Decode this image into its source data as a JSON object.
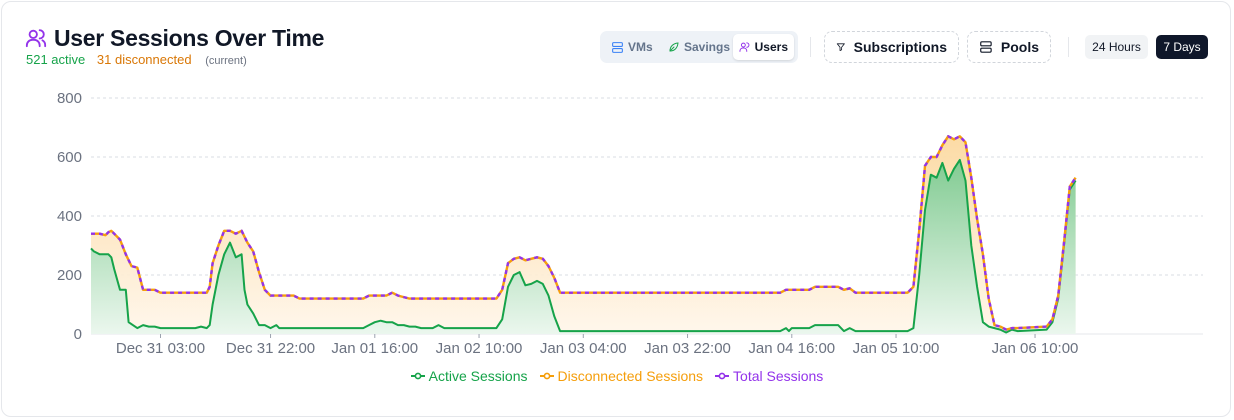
{
  "header": {
    "title": "User Sessions Over Time",
    "active_text": "521 active",
    "disconnected_text": "31 disconnected",
    "current_text": "(current)"
  },
  "toolbar": {
    "segments": [
      {
        "label": "VMs",
        "icon": "server-icon",
        "selected": false
      },
      {
        "label": "Savings",
        "icon": "leaf-icon",
        "selected": false
      },
      {
        "label": "Users",
        "icon": "users-icon",
        "selected": true
      }
    ],
    "subscriptions_label": "Subscriptions",
    "pools_label": "Pools",
    "ranges": [
      {
        "label": "24 Hours",
        "selected": false
      },
      {
        "label": "7 Days",
        "selected": true
      }
    ]
  },
  "colors": {
    "active": "#16a34a",
    "disconnected": "#f59e0b",
    "total": "#9333ea",
    "title_icon": "#9333ea"
  },
  "chart_data": {
    "type": "area",
    "ylim": [
      0,
      800
    ],
    "yticks": [
      0,
      200,
      400,
      600,
      800
    ],
    "xlim_hours": [
      0,
      192
    ],
    "x_tick_labels": [
      "Dec 31 03:00",
      "Dec 31 22:00",
      "Jan 01 16:00",
      "Jan 02 10:00",
      "Jan 03 04:00",
      "Jan 03 22:00",
      "Jan 04 16:00",
      "Jan 05 10:00",
      "Jan 06 10:00"
    ],
    "x_tick_hours": [
      12,
      31,
      49,
      67,
      85,
      103,
      121,
      139,
      163
    ],
    "grid": true,
    "legend_position": "bottom-center",
    "series": [
      {
        "name": "Active Sessions",
        "key": "active",
        "values": [
          [
            0,
            290
          ],
          [
            0.5,
            280
          ],
          [
            1.5,
            270
          ],
          [
            3,
            270
          ],
          [
            3.5,
            260
          ],
          [
            4,
            220
          ],
          [
            5,
            150
          ],
          [
            6,
            150
          ],
          [
            6.5,
            40
          ],
          [
            8,
            20
          ],
          [
            9,
            30
          ],
          [
            10,
            25
          ],
          [
            11,
            25
          ],
          [
            12,
            20
          ],
          [
            15,
            20
          ],
          [
            18,
            20
          ],
          [
            19,
            25
          ],
          [
            20,
            20
          ],
          [
            20.5,
            30
          ],
          [
            21,
            100
          ],
          [
            22,
            200
          ],
          [
            23,
            270
          ],
          [
            24,
            310
          ],
          [
            25,
            260
          ],
          [
            26,
            270
          ],
          [
            26.5,
            150
          ],
          [
            27,
            100
          ],
          [
            28,
            70
          ],
          [
            29,
            30
          ],
          [
            30,
            30
          ],
          [
            31,
            20
          ],
          [
            32,
            30
          ],
          [
            32.5,
            20
          ],
          [
            40,
            20
          ],
          [
            47,
            20
          ],
          [
            48,
            30
          ],
          [
            49,
            40
          ],
          [
            50,
            45
          ],
          [
            51,
            40
          ],
          [
            52,
            40
          ],
          [
            53,
            30
          ],
          [
            54,
            30
          ],
          [
            55,
            25
          ],
          [
            56,
            25
          ],
          [
            57,
            20
          ],
          [
            58,
            20
          ],
          [
            59,
            20
          ],
          [
            60,
            30
          ],
          [
            61,
            20
          ],
          [
            70,
            20
          ],
          [
            71,
            50
          ],
          [
            72,
            160
          ],
          [
            73,
            200
          ],
          [
            74,
            210
          ],
          [
            75,
            165
          ],
          [
            76,
            170
          ],
          [
            77,
            180
          ],
          [
            78,
            170
          ],
          [
            79,
            130
          ],
          [
            80,
            60
          ],
          [
            81,
            10
          ],
          [
            85,
            10
          ],
          [
            95,
            10
          ],
          [
            110,
            10
          ],
          [
            119,
            10
          ],
          [
            120,
            20
          ],
          [
            120.5,
            10
          ],
          [
            121,
            20
          ],
          [
            122,
            20
          ],
          [
            124,
            20
          ],
          [
            125,
            30
          ],
          [
            129,
            30
          ],
          [
            130,
            10
          ],
          [
            131,
            20
          ],
          [
            132,
            10
          ],
          [
            141,
            10
          ],
          [
            142,
            20
          ],
          [
            143,
            200
          ],
          [
            144,
            420
          ],
          [
            145,
            540
          ],
          [
            146,
            530
          ],
          [
            147,
            580
          ],
          [
            148,
            520
          ],
          [
            149,
            560
          ],
          [
            150,
            590
          ],
          [
            151,
            520
          ],
          [
            152,
            300
          ],
          [
            153,
            160
          ],
          [
            154,
            40
          ],
          [
            155,
            25
          ],
          [
            156,
            20
          ],
          [
            157,
            15
          ],
          [
            158,
            5
          ],
          [
            159,
            15
          ],
          [
            160,
            10
          ],
          [
            165,
            15
          ],
          [
            166,
            40
          ],
          [
            167,
            120
          ],
          [
            168,
            300
          ],
          [
            169,
            490
          ],
          [
            170,
            520
          ]
        ]
      },
      {
        "name": "Disconnected Sessions",
        "key": "disconnected",
        "values": [
          [
            0,
            50
          ],
          [
            3,
            80
          ],
          [
            6,
            80
          ],
          [
            10,
            120
          ],
          [
            15,
            120
          ],
          [
            20,
            110
          ],
          [
            24,
            40
          ],
          [
            28,
            100
          ],
          [
            32,
            100
          ],
          [
            40,
            100
          ],
          [
            49,
            95
          ],
          [
            55,
            95
          ],
          [
            60,
            100
          ],
          [
            70,
            100
          ],
          [
            73,
            55
          ],
          [
            78,
            85
          ],
          [
            82,
            130
          ],
          [
            95,
            130
          ],
          [
            110,
            130
          ],
          [
            119,
            130
          ],
          [
            121,
            125
          ],
          [
            130,
            125
          ],
          [
            135,
            125
          ],
          [
            141,
            130
          ],
          [
            144,
            150
          ],
          [
            148,
            100
          ],
          [
            150,
            70
          ],
          [
            153,
            230
          ],
          [
            155,
            100
          ],
          [
            157,
            10
          ],
          [
            160,
            5
          ],
          [
            165,
            0
          ],
          [
            170,
            10
          ]
        ]
      },
      {
        "name": "Total Sessions",
        "key": "total",
        "values": [
          [
            0,
            340
          ],
          [
            0.5,
            340
          ],
          [
            1.5,
            340
          ],
          [
            2.5,
            335
          ],
          [
            3,
            345
          ],
          [
            3.5,
            350
          ],
          [
            4,
            340
          ],
          [
            5,
            320
          ],
          [
            6,
            270
          ],
          [
            7,
            230
          ],
          [
            8,
            225
          ],
          [
            9,
            150
          ],
          [
            10,
            150
          ],
          [
            11,
            150
          ],
          [
            12,
            140
          ],
          [
            15,
            140
          ],
          [
            18,
            140
          ],
          [
            19,
            140
          ],
          [
            20,
            140
          ],
          [
            20.5,
            160
          ],
          [
            21,
            240
          ],
          [
            22,
            300
          ],
          [
            23,
            350
          ],
          [
            24,
            350
          ],
          [
            25,
            340
          ],
          [
            26,
            350
          ],
          [
            27,
            310
          ],
          [
            28,
            280
          ],
          [
            29,
            210
          ],
          [
            30,
            150
          ],
          [
            31,
            130
          ],
          [
            32,
            130
          ],
          [
            35,
            130
          ],
          [
            36,
            120
          ],
          [
            40,
            120
          ],
          [
            47,
            120
          ],
          [
            48,
            130
          ],
          [
            49,
            130
          ],
          [
            50,
            130
          ],
          [
            51,
            130
          ],
          [
            52,
            140
          ],
          [
            53,
            130
          ],
          [
            54,
            125
          ],
          [
            55,
            120
          ],
          [
            56,
            120
          ],
          [
            57,
            120
          ],
          [
            58,
            120
          ],
          [
            59,
            120
          ],
          [
            60,
            120
          ],
          [
            61,
            120
          ],
          [
            70,
            120
          ],
          [
            71,
            150
          ],
          [
            72,
            240
          ],
          [
            73,
            255
          ],
          [
            74,
            260
          ],
          [
            75,
            250
          ],
          [
            76,
            255
          ],
          [
            77,
            260
          ],
          [
            78,
            255
          ],
          [
            79,
            230
          ],
          [
            80,
            190
          ],
          [
            81,
            140
          ],
          [
            85,
            140
          ],
          [
            95,
            140
          ],
          [
            110,
            140
          ],
          [
            119,
            140
          ],
          [
            120,
            150
          ],
          [
            120.5,
            150
          ],
          [
            121,
            150
          ],
          [
            122,
            150
          ],
          [
            124,
            150
          ],
          [
            125,
            160
          ],
          [
            129,
            160
          ],
          [
            130,
            150
          ],
          [
            131,
            155
          ],
          [
            132,
            140
          ],
          [
            141,
            140
          ],
          [
            142,
            160
          ],
          [
            143,
            350
          ],
          [
            144,
            570
          ],
          [
            145,
            600
          ],
          [
            146,
            600
          ],
          [
            147,
            640
          ],
          [
            148,
            670
          ],
          [
            149,
            660
          ],
          [
            150,
            670
          ],
          [
            151,
            650
          ],
          [
            152,
            530
          ],
          [
            153,
            390
          ],
          [
            154,
            270
          ],
          [
            155,
            120
          ],
          [
            156,
            30
          ],
          [
            157,
            25
          ],
          [
            158,
            15
          ],
          [
            159,
            20
          ],
          [
            160,
            20
          ],
          [
            165,
            25
          ],
          [
            166,
            50
          ],
          [
            167,
            130
          ],
          [
            168,
            310
          ],
          [
            169,
            500
          ],
          [
            170,
            530
          ]
        ]
      }
    ]
  }
}
